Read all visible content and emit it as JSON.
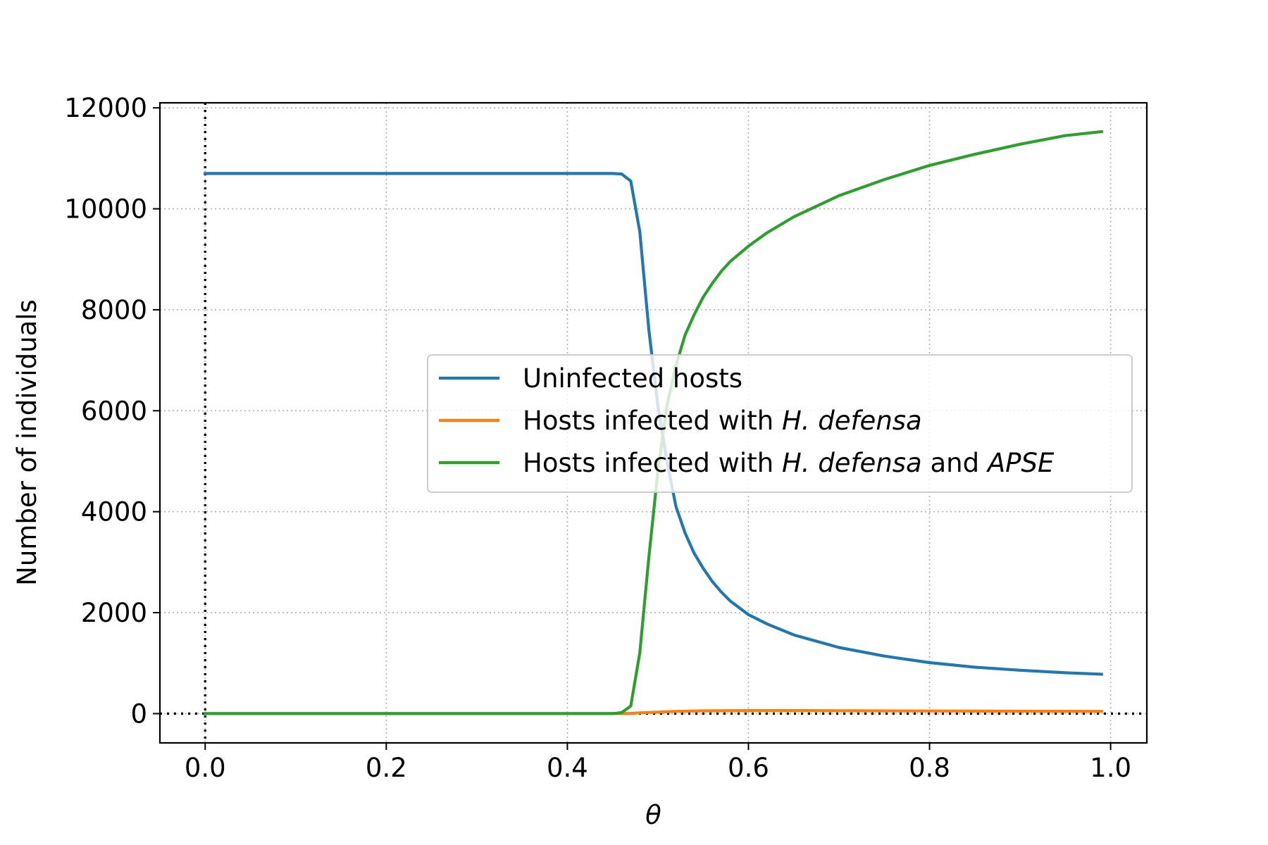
{
  "chart_data": {
    "type": "line",
    "xlabel": "θ",
    "ylabel": "Number of individuals",
    "xlim": [
      -0.05,
      1.04
    ],
    "ylim": [
      -580,
      12100
    ],
    "x_ticks": [
      0.0,
      0.2,
      0.4,
      0.6,
      0.8,
      1.0
    ],
    "x_tick_labels": [
      "0.0",
      "0.2",
      "0.4",
      "0.6",
      "0.8",
      "1.0"
    ],
    "y_ticks": [
      0,
      2000,
      4000,
      6000,
      8000,
      10000,
      12000
    ],
    "y_tick_labels": [
      "0",
      "2000",
      "4000",
      "6000",
      "8000",
      "10000",
      "12000"
    ],
    "grid": true,
    "legend_position": "center-right",
    "reference_lines": {
      "x": 0,
      "y": 0,
      "style": "dotted"
    },
    "colors": {
      "uninfected": "#1f77b4",
      "hd": "#ff7f0e",
      "hd_apse": "#2ca02c"
    },
    "legend": [
      {
        "key": "uninfected",
        "parts": [
          {
            "text": "Uninfected hosts",
            "italic": false
          }
        ]
      },
      {
        "key": "hd",
        "parts": [
          {
            "text": "Hosts infected with ",
            "italic": false
          },
          {
            "text": "H. defensa",
            "italic": true
          }
        ]
      },
      {
        "key": "hd_apse",
        "parts": [
          {
            "text": "Hosts infected with ",
            "italic": false
          },
          {
            "text": "H. defensa",
            "italic": true
          },
          {
            "text": " and ",
            "italic": false
          },
          {
            "text": "APSE",
            "italic": true
          }
        ]
      }
    ],
    "series": [
      {
        "key": "uninfected",
        "name": "Uninfected hosts",
        "x": [
          0.0,
          0.1,
          0.2,
          0.3,
          0.4,
          0.45,
          0.46,
          0.47,
          0.48,
          0.49,
          0.5,
          0.51,
          0.52,
          0.53,
          0.54,
          0.55,
          0.56,
          0.57,
          0.58,
          0.6,
          0.62,
          0.65,
          0.7,
          0.75,
          0.8,
          0.85,
          0.9,
          0.95,
          0.99
        ],
        "y": [
          10700,
          10700,
          10700,
          10700,
          10700,
          10700,
          10690,
          10550,
          9550,
          7600,
          6100,
          5000,
          4100,
          3580,
          3180,
          2880,
          2620,
          2410,
          2230,
          1960,
          1780,
          1560,
          1310,
          1140,
          1010,
          920,
          860,
          810,
          780
        ]
      },
      {
        "key": "hd",
        "name": "Hosts infected with H. defensa",
        "x": [
          0.0,
          0.1,
          0.2,
          0.3,
          0.4,
          0.46,
          0.47,
          0.48,
          0.5,
          0.52,
          0.55,
          0.6,
          0.65,
          0.7,
          0.8,
          0.9,
          0.99
        ],
        "y": [
          0,
          0,
          0,
          0,
          0,
          0,
          5,
          15,
          30,
          45,
          55,
          60,
          60,
          58,
          52,
          48,
          45
        ]
      },
      {
        "key": "hd_apse",
        "name": "Hosts infected with H. defensa and APSE",
        "x": [
          0.0,
          0.1,
          0.2,
          0.3,
          0.4,
          0.45,
          0.46,
          0.47,
          0.48,
          0.49,
          0.5,
          0.51,
          0.52,
          0.53,
          0.54,
          0.55,
          0.56,
          0.57,
          0.58,
          0.6,
          0.62,
          0.65,
          0.7,
          0.75,
          0.8,
          0.85,
          0.9,
          0.95,
          0.99
        ],
        "y": [
          0,
          0,
          0,
          0,
          0,
          0,
          20,
          150,
          1200,
          3100,
          4800,
          6100,
          6900,
          7500,
          7900,
          8250,
          8520,
          8760,
          8960,
          9260,
          9520,
          9840,
          10260,
          10580,
          10860,
          11080,
          11280,
          11450,
          11530
        ]
      }
    ]
  }
}
